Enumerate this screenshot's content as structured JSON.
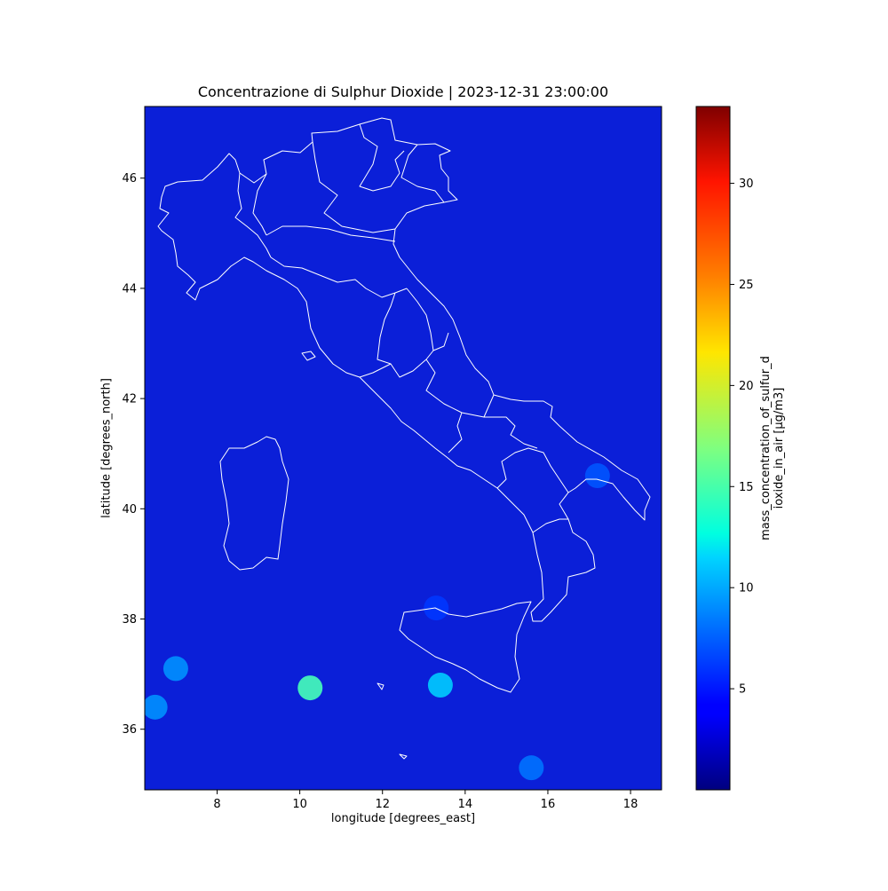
{
  "map": {
    "title": "Concentrazione di Sulphur Dioxide | 2023-12-31 23:00:00",
    "xlabel": "longitude [degrees_east]",
    "ylabel": "latitude [degrees_north]",
    "x_ticks": [
      8,
      10,
      12,
      14,
      16,
      18
    ],
    "y_ticks": [
      36,
      38,
      40,
      42,
      44,
      46
    ],
    "xlim": [
      6.25,
      18.75
    ],
    "ylim": [
      34.9,
      47.3
    ],
    "background_color": "#0b1fd8",
    "border_color": "#ffffff",
    "colormap": "jet",
    "hotspots": [
      {
        "lon": 10.25,
        "lat": 36.75,
        "value": 15
      },
      {
        "lon": 13.4,
        "lat": 36.8,
        "value": 11
      },
      {
        "lon": 7.0,
        "lat": 37.1,
        "value": 9
      },
      {
        "lon": 6.5,
        "lat": 36.4,
        "value": 9
      },
      {
        "lon": 15.6,
        "lat": 35.3,
        "value": 8
      },
      {
        "lon": 17.2,
        "lat": 40.6,
        "value": 7
      },
      {
        "lon": 13.3,
        "lat": 38.2,
        "value": 6
      }
    ]
  },
  "colorbar": {
    "label_line1": "mass_concentration_of_sulfur_d",
    "label_line2": "ioxide_in_air [µg/m3]",
    "min": 0,
    "max": 33.8,
    "ticks": [
      5,
      10,
      15,
      20,
      25,
      30
    ]
  }
}
